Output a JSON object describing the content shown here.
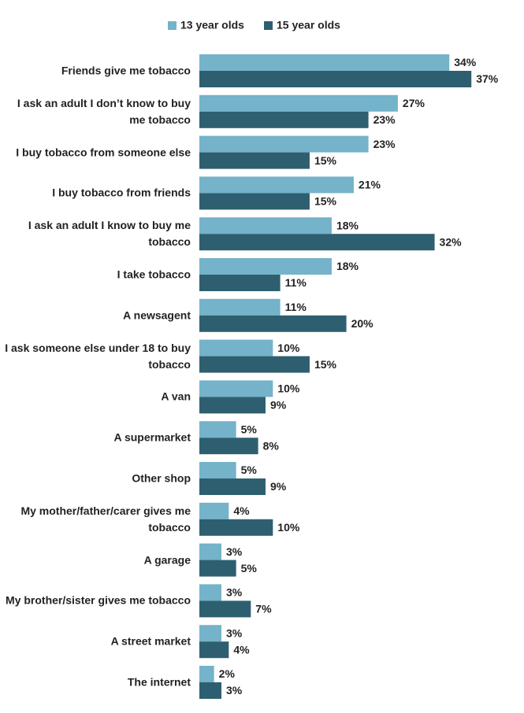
{
  "chart_data": {
    "type": "bar",
    "orientation": "horizontal",
    "categories": [
      "Friends give me tobacco",
      "I ask an adult I don’t know to buy me tobacco",
      "I buy tobacco from someone else",
      "I buy tobacco from friends",
      "I ask an adult I know to buy me tobacco",
      "I take tobacco",
      "A newsagent",
      "I ask someone else under 18 to buy tobacco",
      "A van",
      "A supermarket",
      "Other shop",
      "My mother/father/carer gives me tobacco",
      "A garage",
      "My brother/sister gives me tobacco",
      "A street market",
      "The internet"
    ],
    "series": [
      {
        "name": "13 year olds",
        "color": "#74b3c9",
        "values": [
          34,
          27,
          23,
          21,
          18,
          18,
          11,
          10,
          10,
          5,
          5,
          4,
          3,
          3,
          3,
          2
        ],
        "value_labels": [
          "34%",
          "27%",
          "23%",
          "21%",
          "18%",
          "18%",
          "11%",
          "10%",
          "10%",
          "5%",
          "5%",
          "4%",
          "3%",
          "3%",
          "3%",
          "2%"
        ]
      },
      {
        "name": "15 year olds",
        "color": "#2e5f70",
        "values": [
          37,
          23,
          15,
          15,
          32,
          11,
          20,
          15,
          9,
          8,
          9,
          10,
          5,
          7,
          4,
          3
        ],
        "value_labels": [
          "37%",
          "23%",
          "15%",
          "15%",
          "32%",
          "11%",
          "20%",
          "15%",
          "9%",
          "8%",
          "9%",
          "10%",
          "5%",
          "7%",
          "4%",
          "3%"
        ]
      }
    ],
    "legend": "top"
  }
}
